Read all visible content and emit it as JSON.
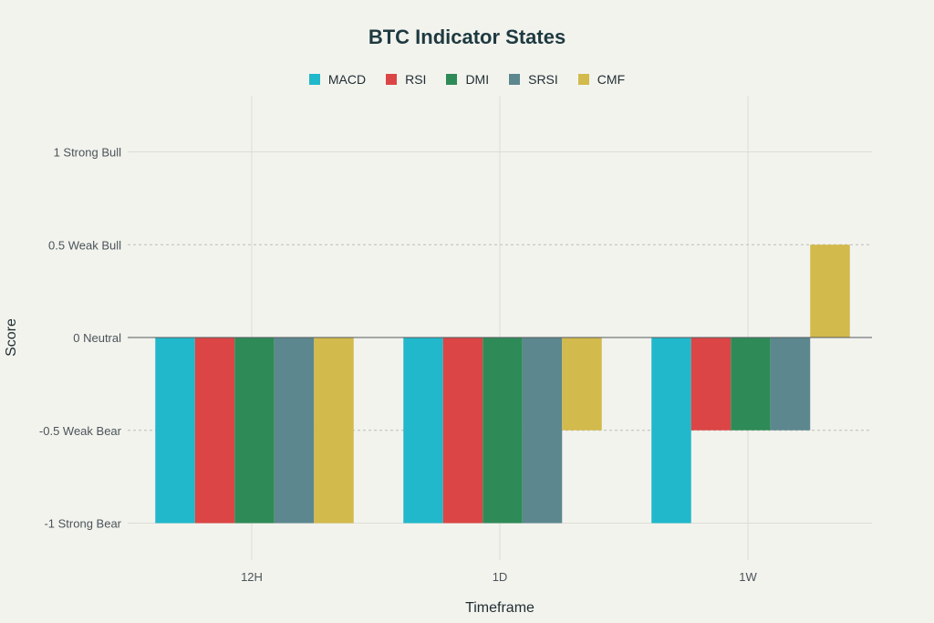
{
  "chart_data": {
    "type": "bar",
    "title": "BTC Indicator States",
    "xlabel": "Timeframe",
    "ylabel": "Score",
    "categories": [
      "12H",
      "1D",
      "1W"
    ],
    "ylim": [
      -1.2,
      1.3
    ],
    "yticks": [
      {
        "value": 1,
        "label": "1 Strong Bull"
      },
      {
        "value": 0.5,
        "label": "0.5 Weak Bull"
      },
      {
        "value": 0,
        "label": "0 Neutral"
      },
      {
        "value": -0.5,
        "label": "-0.5 Weak Bear"
      },
      {
        "value": -1,
        "label": "-1 Strong Bear"
      }
    ],
    "legend_position": "top-center",
    "grid": true,
    "series": [
      {
        "name": "MACD",
        "color": "#21b8cb",
        "values": [
          -1,
          -1,
          -1
        ]
      },
      {
        "name": "RSI",
        "color": "#db4545",
        "values": [
          -1,
          -1,
          -0.5
        ]
      },
      {
        "name": "DMI",
        "color": "#2e8b57",
        "values": [
          -1,
          -1,
          -0.5
        ]
      },
      {
        "name": "SRSI",
        "color": "#5d878f",
        "values": [
          -1,
          -1,
          -0.5
        ]
      },
      {
        "name": "CMF",
        "color": "#d2ba4c",
        "values": [
          -1,
          -0.5,
          0.5
        ]
      }
    ]
  }
}
